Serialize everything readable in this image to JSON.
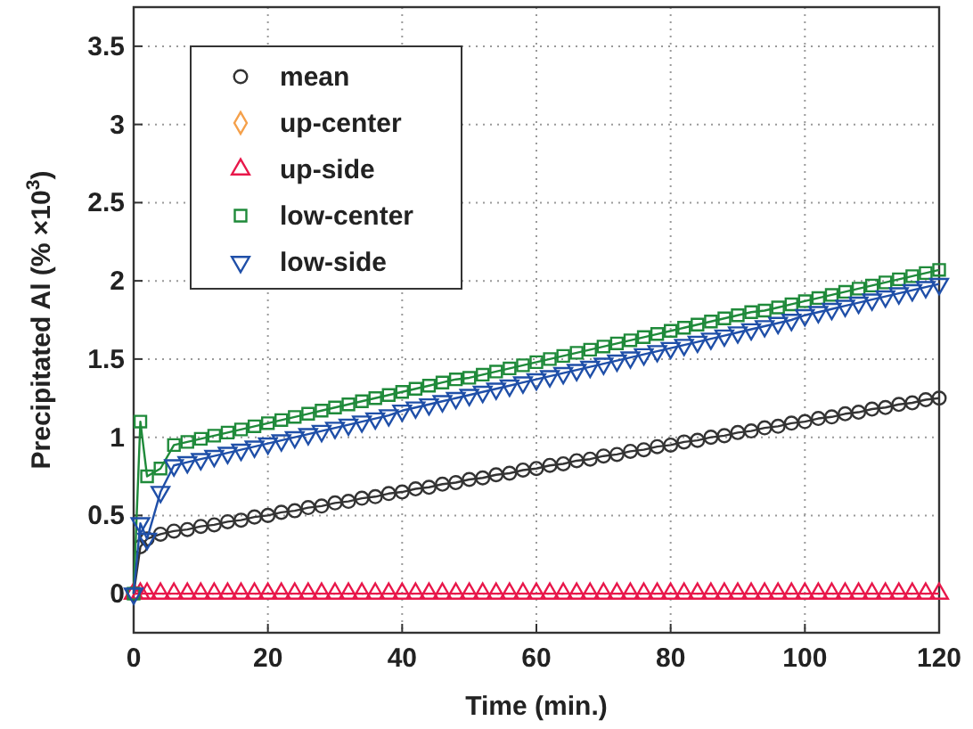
{
  "chart_data": {
    "type": "line",
    "xlabel": "Time (min.)",
    "ylabel": "Precipitated Al (% ×10$^{3}$)",
    "x": [
      0,
      1,
      2,
      4,
      6,
      8,
      10,
      12,
      14,
      16,
      18,
      20,
      22,
      24,
      26,
      28,
      30,
      32,
      34,
      36,
      38,
      40,
      42,
      44,
      46,
      48,
      50,
      52,
      54,
      56,
      58,
      60,
      62,
      64,
      66,
      68,
      70,
      72,
      74,
      76,
      78,
      80,
      82,
      84,
      86,
      88,
      90,
      92,
      94,
      96,
      98,
      100,
      102,
      104,
      106,
      108,
      110,
      112,
      114,
      116,
      118,
      120
    ],
    "series": [
      {
        "name": "mean",
        "color": "#333333",
        "marker": "circle",
        "values": [
          0,
          0.3,
          0.35,
          0.38,
          0.4,
          0.41,
          0.43,
          0.44,
          0.46,
          0.47,
          0.49,
          0.5,
          0.52,
          0.53,
          0.55,
          0.56,
          0.58,
          0.59,
          0.61,
          0.62,
          0.64,
          0.65,
          0.67,
          0.68,
          0.7,
          0.71,
          0.73,
          0.74,
          0.76,
          0.77,
          0.79,
          0.8,
          0.82,
          0.83,
          0.85,
          0.86,
          0.88,
          0.89,
          0.91,
          0.92,
          0.94,
          0.95,
          0.97,
          0.98,
          1.0,
          1.01,
          1.03,
          1.04,
          1.06,
          1.07,
          1.09,
          1.1,
          1.12,
          1.13,
          1.15,
          1.16,
          1.18,
          1.19,
          1.21,
          1.22,
          1.24,
          1.25
        ]
      },
      {
        "name": "up-center",
        "color": "#f5a04a",
        "marker": "diamond",
        "values": [
          null,
          null,
          null,
          null,
          null,
          null,
          null,
          null,
          null,
          null,
          null,
          null,
          null,
          null,
          null,
          null,
          null,
          null,
          null,
          null,
          null,
          null,
          null,
          null,
          null,
          null,
          null,
          null,
          null,
          null,
          null,
          null,
          null,
          null,
          null,
          null,
          null,
          null,
          null,
          null,
          null,
          null,
          null,
          null,
          null,
          null,
          null,
          null,
          null,
          null,
          null,
          null,
          null,
          null,
          null,
          null,
          null,
          null,
          null,
          null,
          null,
          null
        ]
      },
      {
        "name": "up-side",
        "color": "#e8174a",
        "marker": "triangle",
        "values": [
          0,
          0,
          0,
          0,
          0,
          0,
          0,
          0,
          0,
          0,
          0,
          0,
          0,
          0,
          0,
          0,
          0,
          0,
          0,
          0,
          0,
          0,
          0,
          0,
          0,
          0,
          0,
          0,
          0,
          0,
          0,
          0,
          0,
          0,
          0,
          0,
          0,
          0,
          0,
          0,
          0,
          0,
          0,
          0,
          0,
          0,
          0,
          0,
          0,
          0,
          0,
          0,
          0,
          0,
          0,
          0,
          0,
          0,
          0,
          0,
          0,
          0
        ]
      },
      {
        "name": "low-center",
        "color": "#1f8a3a",
        "marker": "square",
        "values": [
          0,
          1.1,
          0.75,
          0.8,
          0.95,
          0.97,
          0.99,
          1.01,
          1.03,
          1.05,
          1.07,
          1.09,
          1.11,
          1.13,
          1.15,
          1.17,
          1.19,
          1.21,
          1.23,
          1.25,
          1.27,
          1.29,
          1.31,
          1.33,
          1.35,
          1.37,
          1.38,
          1.4,
          1.42,
          1.44,
          1.46,
          1.48,
          1.5,
          1.52,
          1.54,
          1.56,
          1.58,
          1.6,
          1.62,
          1.64,
          1.66,
          1.68,
          1.7,
          1.72,
          1.74,
          1.76,
          1.78,
          1.8,
          1.81,
          1.83,
          1.85,
          1.87,
          1.89,
          1.91,
          1.93,
          1.95,
          1.97,
          1.99,
          2.01,
          2.03,
          2.05,
          2.07
        ]
      },
      {
        "name": "low-side",
        "color": "#1f4fa8",
        "marker": "triangle-down",
        "values": [
          0,
          0.45,
          0.35,
          0.65,
          0.82,
          0.84,
          0.86,
          0.88,
          0.9,
          0.92,
          0.94,
          0.96,
          0.98,
          1.0,
          1.02,
          1.04,
          1.06,
          1.08,
          1.1,
          1.12,
          1.14,
          1.17,
          1.19,
          1.21,
          1.23,
          1.25,
          1.27,
          1.29,
          1.31,
          1.33,
          1.35,
          1.37,
          1.39,
          1.41,
          1.43,
          1.45,
          1.47,
          1.49,
          1.51,
          1.53,
          1.55,
          1.57,
          1.59,
          1.61,
          1.63,
          1.65,
          1.67,
          1.69,
          1.71,
          1.73,
          1.75,
          1.78,
          1.8,
          1.82,
          1.84,
          1.86,
          1.88,
          1.9,
          1.92,
          1.94,
          1.96,
          1.98
        ]
      }
    ],
    "xlim": [
      0,
      120
    ],
    "xticks": [
      0,
      20,
      40,
      60,
      80,
      100,
      120
    ],
    "ylim": [
      -0.25,
      3.75
    ],
    "yticks": [
      0,
      0.5,
      1,
      1.5,
      2,
      2.5,
      3,
      3.5
    ],
    "grid": true,
    "legend": "top left",
    "line_style": "solid"
  }
}
